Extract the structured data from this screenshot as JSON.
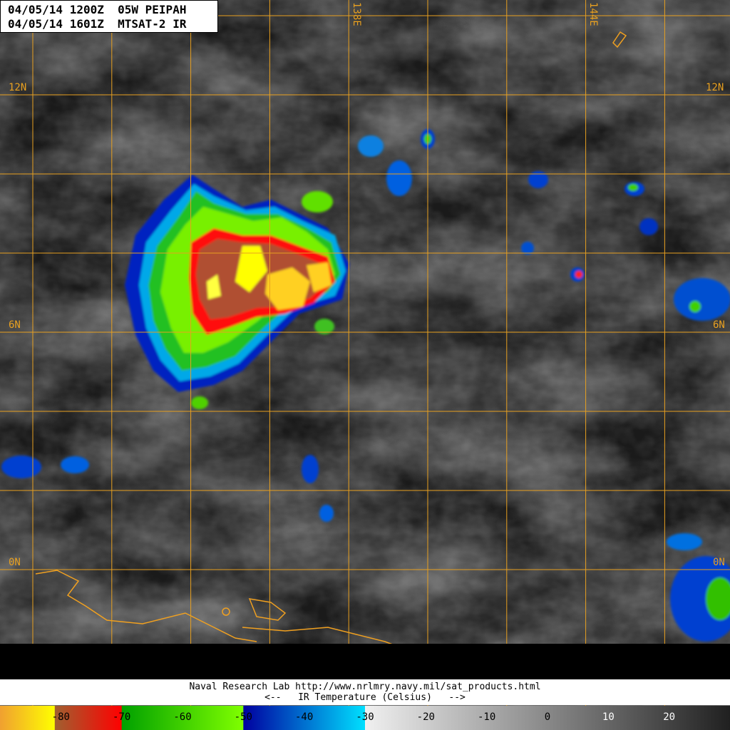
{
  "header": {
    "line1": "04/05/14 1200Z  05W PEIPAH",
    "line2": "04/05/14 1601Z  MTSAT-2 IR"
  },
  "grid": {
    "line_color": "#e8a020",
    "lat_labels": [
      "12N",
      "6N",
      "0N"
    ],
    "lon_labels": [
      "138E",
      "144E"
    ]
  },
  "footer": {
    "credit": "Naval Research Lab http://www.nrlmry.navy.mil/sat_products.html",
    "legend_title": "<--   IR Temperature (Celsius)   -->"
  },
  "colorbar": {
    "range_celsius": [
      -90,
      30
    ],
    "ticks": [
      "-80",
      "-70",
      "-60",
      "-50",
      "-40",
      "-30",
      "-20",
      "-10",
      "0",
      "10",
      "20"
    ],
    "colors": {
      "orange": "#f0a030",
      "yellow": "#ffff00",
      "brown": "#a06030",
      "red": "#ff0000",
      "dark_green": "#00a000",
      "light_green": "#80ff00",
      "dark_blue": "#0000a0",
      "cyan": "#00e0ff",
      "white": "#f0f0f0",
      "black": "#202020"
    }
  },
  "storm": {
    "name": "05W PEIPAH"
  }
}
